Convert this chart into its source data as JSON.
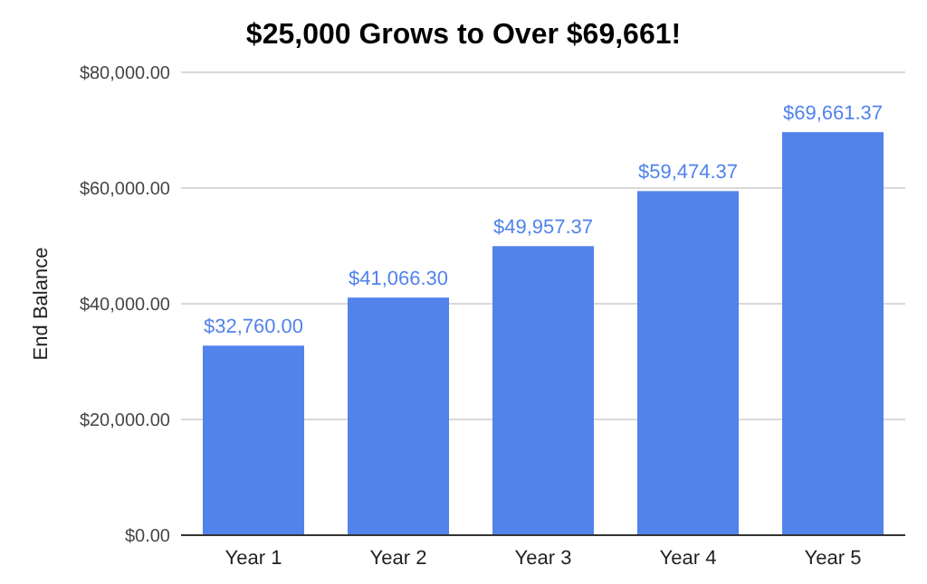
{
  "chart_data": {
    "type": "bar",
    "title": "$25,000 Grows to Over $69,661!",
    "ylabel": "End Balance",
    "categories": [
      "Year 1",
      "Year 2",
      "Year 3",
      "Year 4",
      "Year 5"
    ],
    "values": [
      32760,
      41066.3,
      49957.37,
      59474.37,
      69661.37
    ],
    "value_labels": [
      "$32,760.00",
      "$41,066.30",
      "$49,957.37",
      "$59,474.37",
      "$69,661.37"
    ],
    "color": "#5283eb",
    "ylim": [
      0,
      80000
    ],
    "yticks": [
      {
        "value": 0,
        "label": "$0.00"
      },
      {
        "value": 20000,
        "label": "$20,000.00"
      },
      {
        "value": 40000,
        "label": "$40,000.00"
      },
      {
        "value": 60000,
        "label": "$60,000.00"
      },
      {
        "value": 80000,
        "label": "$80,000.00"
      }
    ],
    "grid": true
  }
}
